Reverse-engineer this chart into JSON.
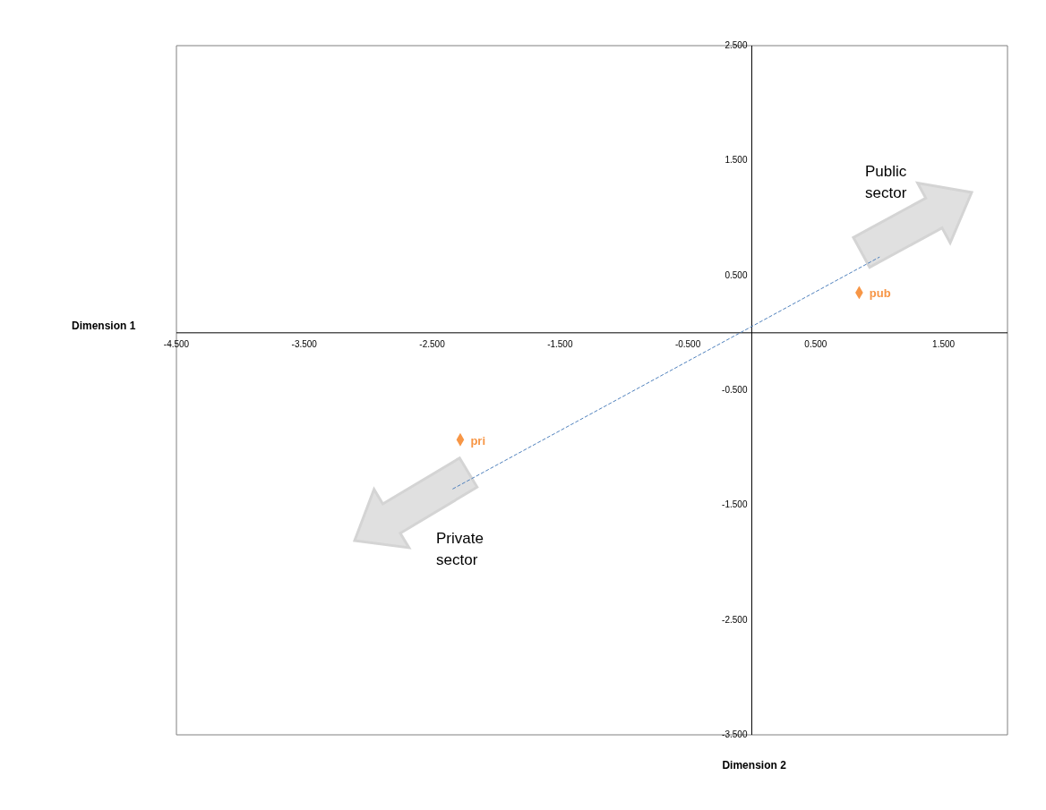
{
  "chart_data": {
    "type": "scatter",
    "xlabel": "Dimension 2",
    "ylabel": "Dimension 1",
    "xlim": [
      -4.5,
      2.0
    ],
    "ylim": [
      -3.5,
      2.5
    ],
    "xticks": [
      {
        "value": -4.5,
        "label": "-4.500"
      },
      {
        "value": -3.5,
        "label": "-3.500"
      },
      {
        "value": -2.5,
        "label": "-2.500"
      },
      {
        "value": -1.5,
        "label": "-1.500"
      },
      {
        "value": -0.5,
        "label": "-0.500"
      },
      {
        "value": 0.5,
        "label": "0.500"
      },
      {
        "value": 1.5,
        "label": "1.500"
      }
    ],
    "yticks": [
      {
        "value": 2.5,
        "label": "2.500"
      },
      {
        "value": 1.5,
        "label": "1.500"
      },
      {
        "value": 0.5,
        "label": "0.500"
      },
      {
        "value": -0.5,
        "label": "-0.500"
      },
      {
        "value": -1.5,
        "label": "-1.500"
      },
      {
        "value": -2.5,
        "label": "-2.500"
      },
      {
        "value": -3.5,
        "label": "-3.500"
      }
    ],
    "series": [
      {
        "name": "pub",
        "color": "#f79646",
        "marker": "diamond",
        "x": [
          0.84
        ],
        "values": [
          0.35
        ]
      },
      {
        "name": "pri",
        "color": "#f79646",
        "marker": "diamond",
        "x": [
          -2.28
        ],
        "values": [
          -0.93
        ]
      },
      {
        "type": "line",
        "color": "#4f81bd",
        "line_style": "dashed",
        "x": [
          -2.34,
          1.0
        ],
        "values": [
          -1.36,
          0.66
        ]
      }
    ],
    "annotations": [
      "Public sector",
      "Private sector"
    ]
  }
}
